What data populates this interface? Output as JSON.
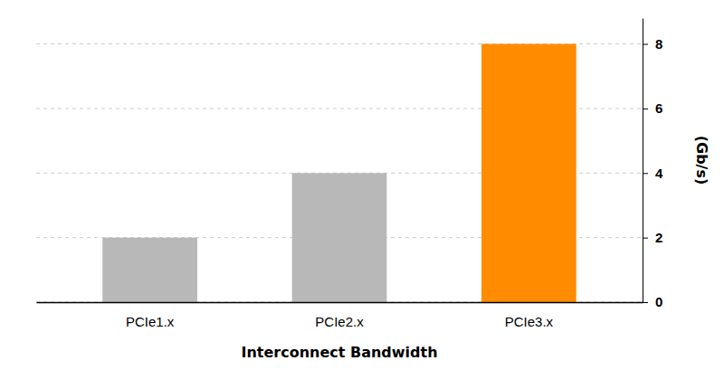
{
  "chart_data": {
    "type": "bar",
    "categories": [
      "PCIe1.x",
      "PCIe2.x",
      "PCIe3.x"
    ],
    "values": [
      2,
      4,
      8
    ],
    "colors": [
      "#b8b8b8",
      "#b8b8b8",
      "#ff8c00"
    ],
    "ylim": [
      0,
      8.8
    ],
    "yticks": [
      0,
      2,
      4,
      6,
      8
    ],
    "xlabel": "Interconnect Bandwidth",
    "ylabel": "(Gb/s)",
    "grid": true
  }
}
